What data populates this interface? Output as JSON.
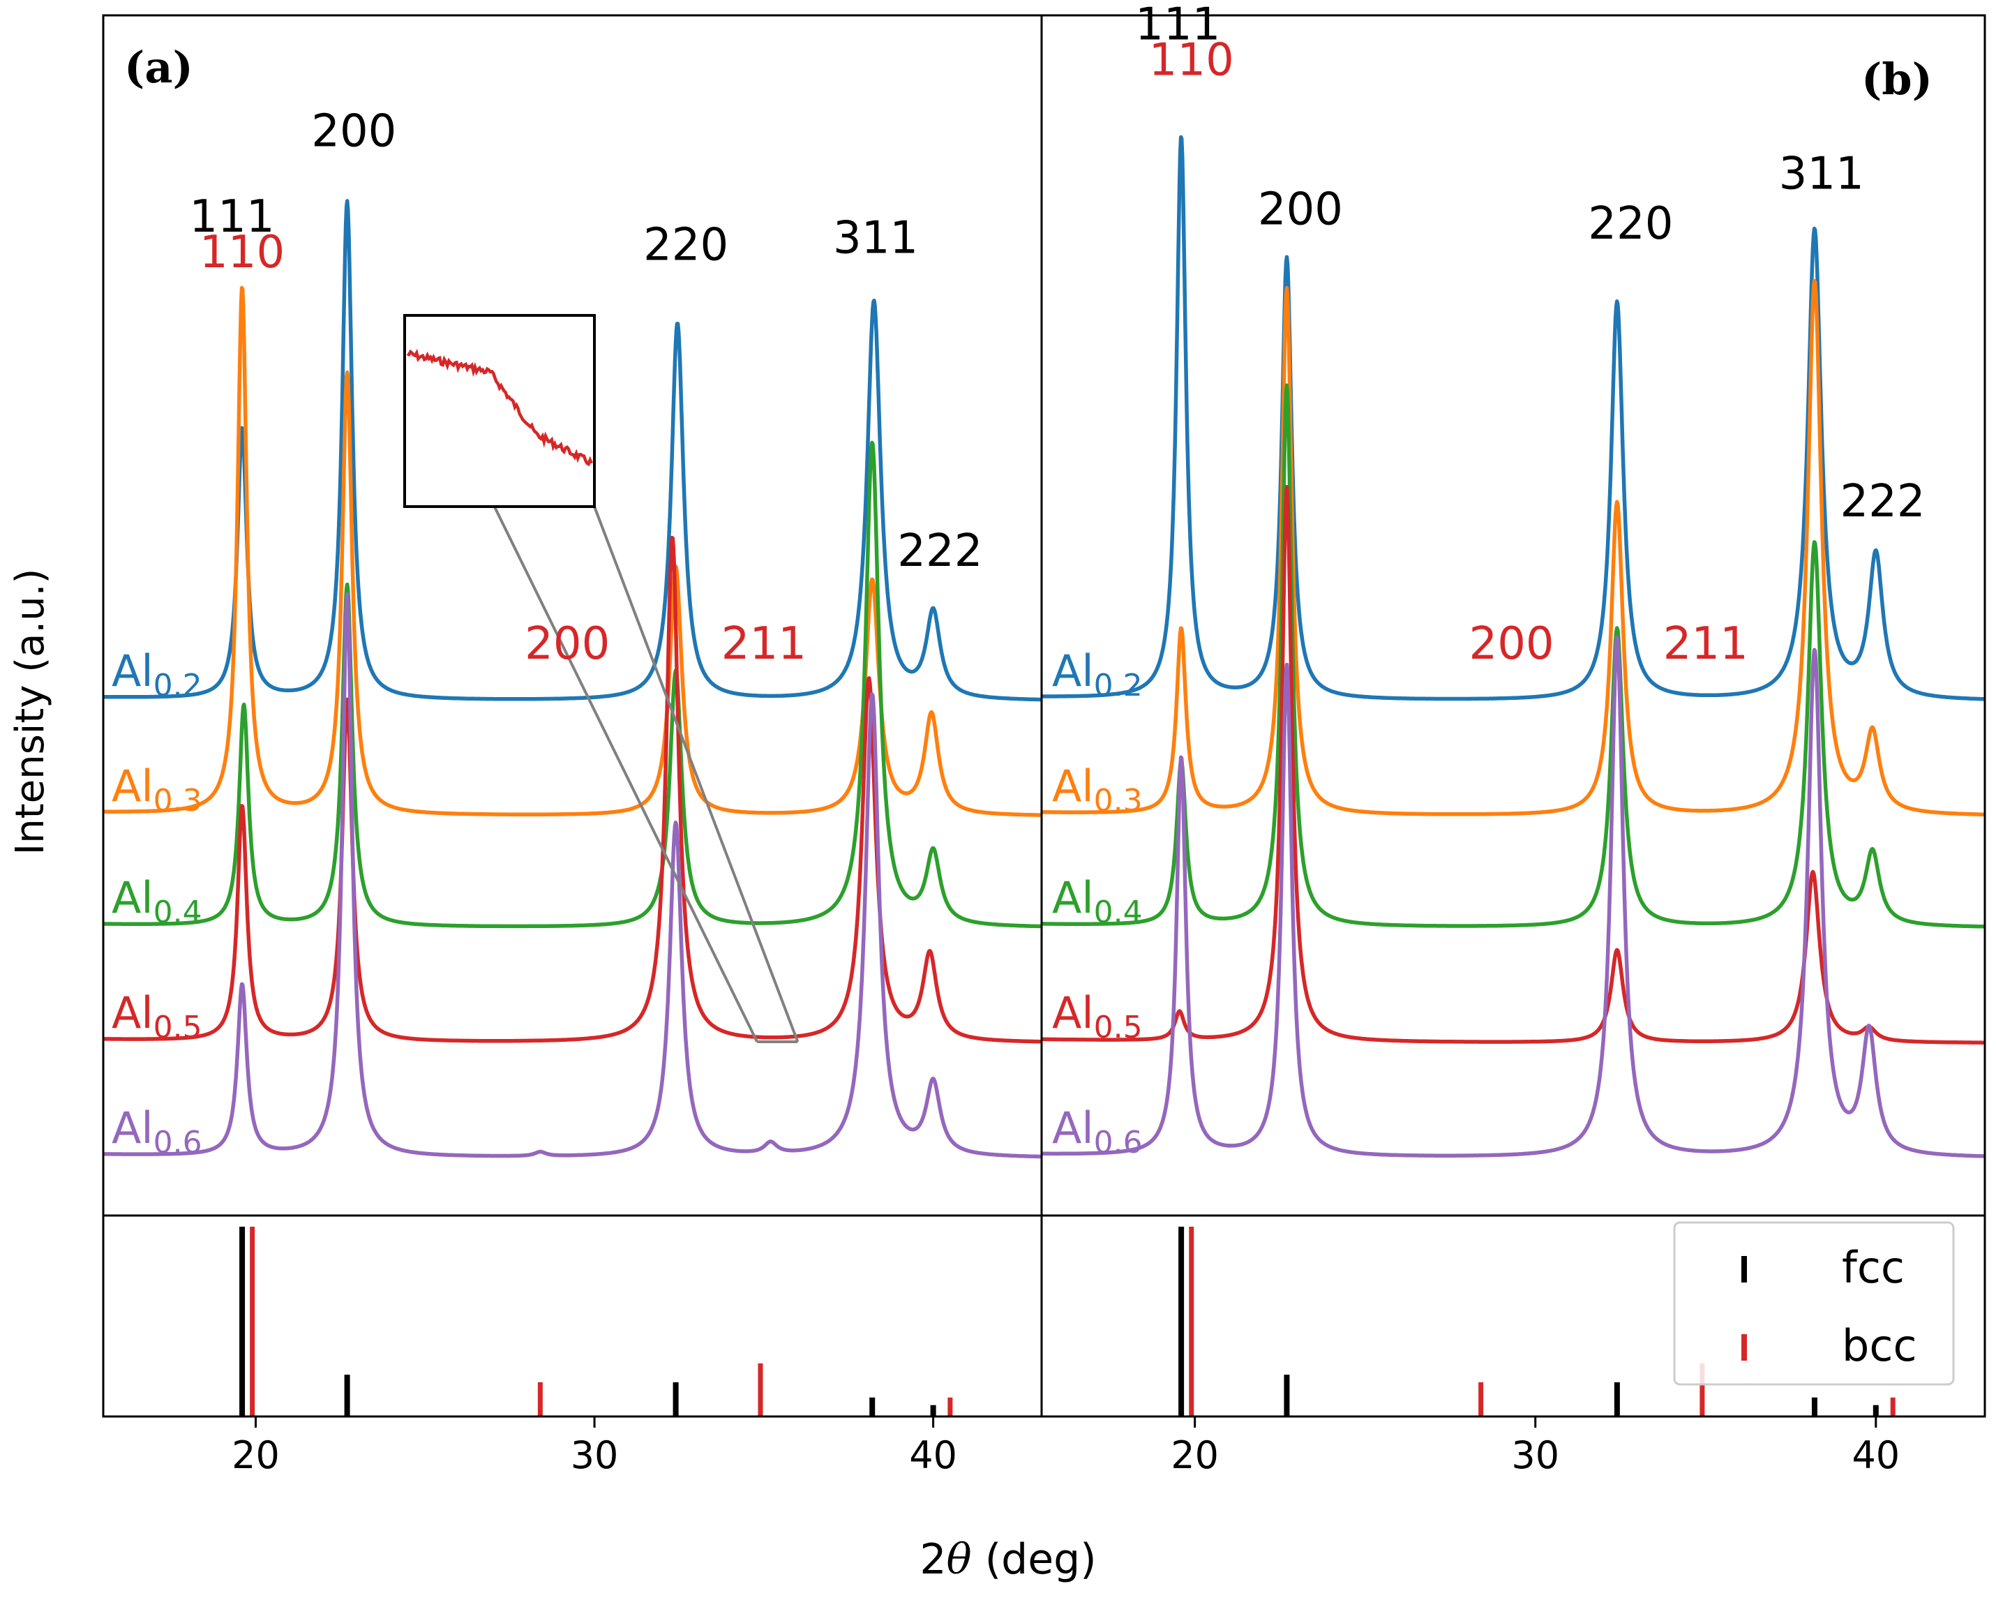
{
  "chart_data": {
    "type": "line",
    "xlabel_prefix": "2",
    "xlabel_symbol": "θ",
    "xlabel_suffix": " (deg)",
    "ylabel": "Intensity (a.u.)",
    "xlim": [
      15.5,
      43.2
    ],
    "xticks": [
      "20",
      "30",
      "40"
    ],
    "xtick_values": [
      20,
      30,
      40
    ],
    "colors": {
      "Al0.2": "#1f77b4",
      "Al0.3": "#ff7f0e",
      "Al0.4": "#2ca02c",
      "Al0.5": "#d62728",
      "Al0.6": "#9467bd",
      "fcc": "#000000",
      "bcc": "#d62728",
      "bcc_label": "#d62728"
    },
    "series_labels": [
      {
        "key": "Al0.2",
        "base": "Al",
        "sub": "0.2"
      },
      {
        "key": "Al0.3",
        "base": "Al",
        "sub": "0.3"
      },
      {
        "key": "Al0.4",
        "base": "Al",
        "sub": "0.4"
      },
      {
        "key": "Al0.5",
        "base": "Al",
        "sub": "0.5"
      },
      {
        "key": "Al0.6",
        "base": "Al",
        "sub": "0.6"
      }
    ],
    "reference_lines": {
      "fcc": [
        {
          "x": 19.6,
          "h": 1.0
        },
        {
          "x": 22.7,
          "h": 0.22
        },
        {
          "x": 32.4,
          "h": 0.18
        },
        {
          "x": 38.2,
          "h": 0.1
        },
        {
          "x": 40.0,
          "h": 0.06
        }
      ],
      "bcc": [
        {
          "x": 19.9,
          "h": 1.0
        },
        {
          "x": 28.4,
          "h": 0.18
        },
        {
          "x": 34.9,
          "h": 0.28
        },
        {
          "x": 40.5,
          "h": 0.1
        }
      ]
    },
    "legend": [
      {
        "key": "fcc",
        "label": "fcc"
      },
      {
        "key": "bcc",
        "label": "bcc"
      }
    ],
    "panels": [
      {
        "id": "a",
        "panel_label": "(a)",
        "series": [
          {
            "name": "Al0.2",
            "peaks": [
              [
                19.6,
                3.8
              ],
              [
                22.7,
                7.0
              ],
              [
                32.45,
                5.3
              ],
              [
                38.25,
                5.6
              ],
              [
                40.0,
                1.2
              ]
            ]
          },
          {
            "name": "Al0.3",
            "peaks": [
              [
                19.6,
                7.4
              ],
              [
                22.7,
                6.2
              ],
              [
                32.4,
                3.5
              ],
              [
                38.2,
                3.3
              ],
              [
                39.95,
                1.4
              ]
            ]
          },
          {
            "name": "Al0.4",
            "peaks": [
              [
                19.65,
                3.1
              ],
              [
                22.7,
                4.8
              ],
              [
                32.4,
                3.6
              ],
              [
                38.2,
                6.8
              ],
              [
                40.0,
                1.0
              ]
            ]
          },
          {
            "name": "Al0.5",
            "peaks": [
              [
                19.6,
                3.3
              ],
              [
                22.7,
                4.8
              ],
              [
                32.3,
                7.1
              ],
              [
                38.1,
                5.1
              ],
              [
                39.9,
                1.2
              ]
            ]
          },
          {
            "name": "Al0.6",
            "peaks": [
              [
                19.6,
                2.4
              ],
              [
                22.7,
                7.9
              ],
              [
                32.4,
                4.7
              ],
              [
                38.2,
                6.5
              ],
              [
                40.0,
                1.0
              ],
              [
                28.4,
                0.06
              ],
              [
                35.2,
                0.16
              ]
            ]
          }
        ],
        "annotations": [
          {
            "text": "111",
            "x": 19.3,
            "level": 6.6,
            "color": "black"
          },
          {
            "text": "110",
            "x": 19.6,
            "level": 6.1,
            "color": "red"
          },
          {
            "text": "200",
            "x": 22.9,
            "level": 7.8,
            "color": "black"
          },
          {
            "text": "220",
            "x": 32.7,
            "level": 6.2,
            "color": "black"
          },
          {
            "text": "311",
            "x": 38.3,
            "level": 6.3,
            "color": "black"
          },
          {
            "text": "222",
            "x": 40.2,
            "level": 1.9,
            "color": "black"
          },
          {
            "text": "200",
            "x": 29.2,
            "level": 0.6,
            "color": "red"
          },
          {
            "text": "211",
            "x": 35.0,
            "level": 0.6,
            "color": "red"
          }
        ]
      },
      {
        "id": "b",
        "panel_label": "(b)",
        "series": [
          {
            "name": "Al0.2",
            "peaks": [
              [
                19.6,
                7.9
              ],
              [
                22.7,
                6.2
              ],
              [
                32.4,
                5.6
              ],
              [
                38.2,
                6.6
              ],
              [
                40.0,
                2.0
              ]
            ]
          },
          {
            "name": "Al0.3",
            "peaks": [
              [
                19.6,
                2.6
              ],
              [
                22.7,
                7.4
              ],
              [
                32.4,
                4.4
              ],
              [
                38.2,
                7.5
              ],
              [
                39.9,
                1.1
              ]
            ]
          },
          {
            "name": "Al0.4",
            "peaks": [
              [
                19.6,
                2.3
              ],
              [
                22.7,
                7.6
              ],
              [
                32.4,
                4.2
              ],
              [
                38.2,
                5.4
              ],
              [
                39.9,
                1.0
              ]
            ]
          },
          {
            "name": "Al0.5",
            "peaks": [
              [
                19.55,
                0.4
              ],
              [
                22.7,
                7.8
              ],
              [
                32.4,
                1.3
              ],
              [
                38.15,
                2.4
              ],
              [
                39.8,
                0.18
              ]
            ]
          },
          {
            "name": "Al0.6",
            "peaks": [
              [
                19.6,
                5.6
              ],
              [
                22.7,
                6.9
              ],
              [
                32.4,
                7.3
              ],
              [
                38.2,
                7.1
              ],
              [
                39.8,
                1.7
              ]
            ]
          }
        ],
        "annotations": [
          {
            "text": "111",
            "x": 19.5,
            "level": 9.3,
            "color": "black"
          },
          {
            "text": "110",
            "x": 19.9,
            "level": 8.8,
            "color": "red"
          },
          {
            "text": "200",
            "x": 23.1,
            "level": 6.7,
            "color": "black"
          },
          {
            "text": "220",
            "x": 32.8,
            "level": 6.5,
            "color": "black"
          },
          {
            "text": "311",
            "x": 38.4,
            "level": 7.2,
            "color": "black"
          },
          {
            "text": "222",
            "x": 40.2,
            "level": 2.6,
            "color": "black"
          },
          {
            "text": "200",
            "x": 29.3,
            "level": 0.6,
            "color": "red"
          },
          {
            "text": "211",
            "x": 35.0,
            "level": 0.6,
            "color": "red"
          }
        ]
      }
    ],
    "inset": {
      "series": "Al0.5",
      "panel": "a",
      "source_x_range": [
        34.8,
        36.0
      ]
    }
  }
}
